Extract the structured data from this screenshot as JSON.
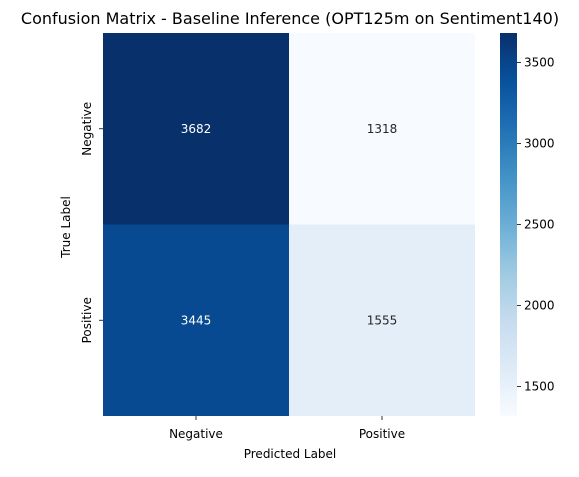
{
  "chart_data": {
    "type": "heatmap",
    "title": "Confusion Matrix - Baseline Inference (OPT125m on Sentiment140)",
    "xlabel": "Predicted Label",
    "ylabel": "True Label",
    "x_categories": [
      "Negative",
      "Positive"
    ],
    "y_categories": [
      "Negative",
      "Positive"
    ],
    "values": [
      [
        3682,
        1318
      ],
      [
        3445,
        1555
      ]
    ],
    "colormap": "Blues",
    "colorbar": {
      "min": 1318,
      "max": 3682,
      "ticks": [
        1500,
        2000,
        2500,
        3000,
        3500
      ]
    },
    "grid": false,
    "legend": "colorbar-right"
  }
}
